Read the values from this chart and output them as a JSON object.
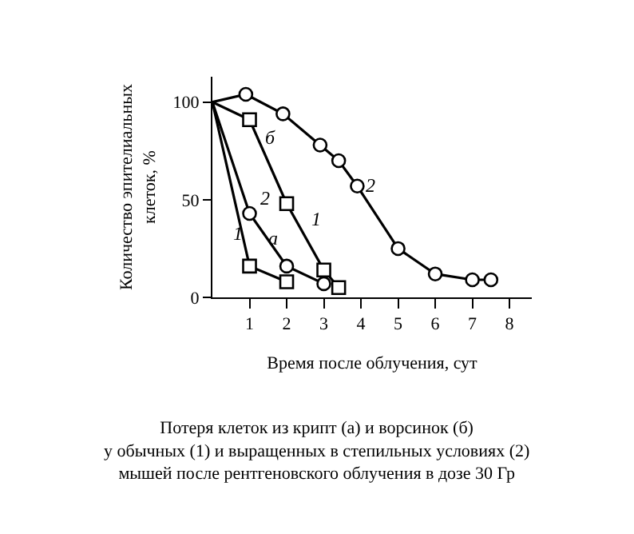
{
  "chart_data": {
    "type": "line",
    "xlabel": "Время после облучения, сут",
    "ylabel": "Количество эпителиальных\nклеток, %",
    "series": [
      {
        "name": "1",
        "color": "#000000",
        "marker": "square",
        "x": [
          0,
          1,
          2
        ],
        "values": [
          100,
          16,
          8
        ]
      },
      {
        "name": "2",
        "color": "#000000",
        "marker": "circle",
        "x": [
          0,
          1,
          2,
          3
        ],
        "values": [
          100,
          43,
          16,
          7
        ]
      },
      {
        "name": "1",
        "color": "#000000",
        "marker": "square",
        "x": [
          0,
          1,
          2,
          3,
          3.4
        ],
        "values": [
          100,
          91,
          48,
          14,
          5
        ]
      },
      {
        "name": "2",
        "color": "#000000",
        "marker": "circle",
        "x": [
          0,
          0.9,
          1.9,
          2.9,
          3.4,
          3.9,
          5,
          6,
          7,
          7.5
        ],
        "values": [
          100,
          104,
          94,
          78,
          70,
          57,
          25,
          12,
          9,
          9
        ]
      }
    ],
    "xlim": [
      0,
      8.6
    ],
    "ylim": [
      0,
      113
    ],
    "xticks": [
      1,
      2,
      3,
      4,
      5,
      6,
      7,
      8
    ],
    "yticks": [
      0,
      50,
      100
    ],
    "legend": false,
    "line_style": "solid",
    "annotations": [
      "а",
      "б",
      "Потеря клеток из крипт (а) и ворсинок (б)\nу обычных (1) и выращенных в степильных условиях (2)\nмышей после рентгеновского облучения в дозе 30 Гр"
    ]
  }
}
